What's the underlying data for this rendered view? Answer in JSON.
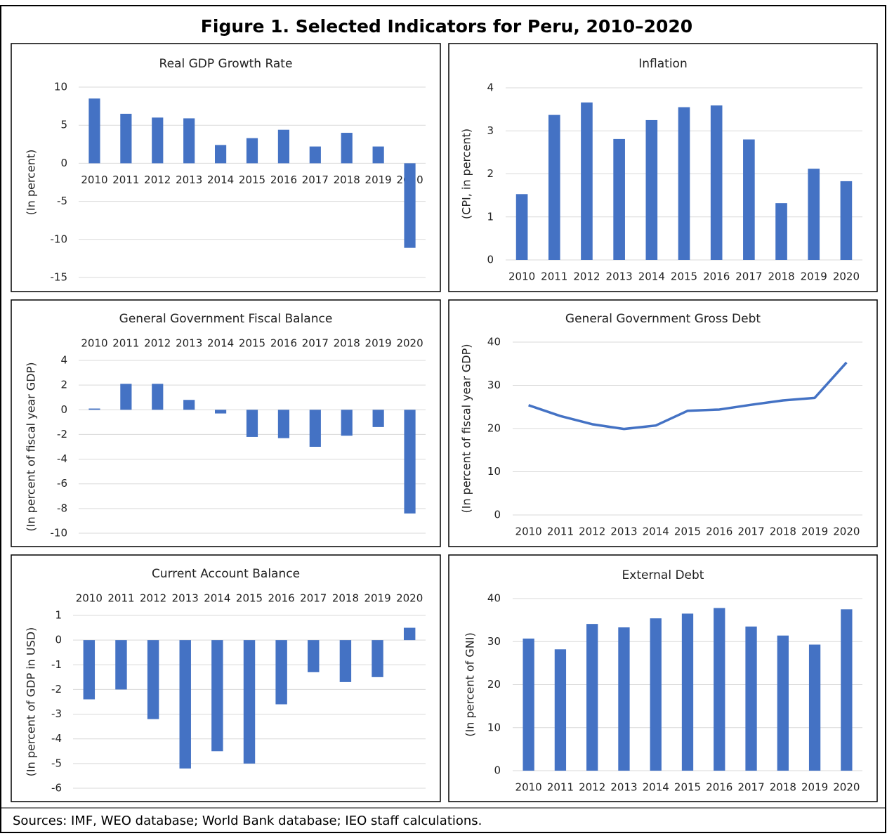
{
  "title": "Figure 1. Selected Indicators for Peru, 2010–2020",
  "source": "Sources: IMF, WEO database;  World Bank database;  IEO staff calculations.",
  "chart_data": [
    {
      "type": "bar",
      "title": "Real GDP Growth Rate",
      "y_label": "(In percent)",
      "color": "#4472c4",
      "grid": true,
      "categories": [
        "2010",
        "2011",
        "2012",
        "2013",
        "2014",
        "2015",
        "2016",
        "2017",
        "2018",
        "2019",
        "2020"
      ],
      "values": [
        8.5,
        6.5,
        6.0,
        5.9,
        2.4,
        3.3,
        4.4,
        2.2,
        4.0,
        2.2,
        -11.1
      ],
      "ylim": [
        -15,
        10
      ],
      "yticks": [
        -15,
        -10,
        -5,
        0,
        5,
        10
      ]
    },
    {
      "type": "bar",
      "title": "Inflation",
      "y_label": "(CPI, in percent)",
      "color": "#4472c4",
      "grid": true,
      "categories": [
        "2010",
        "2011",
        "2012",
        "2013",
        "2014",
        "2015",
        "2016",
        "2017",
        "2018",
        "2019",
        "2020"
      ],
      "values": [
        1.53,
        3.37,
        3.66,
        2.81,
        3.25,
        3.55,
        3.59,
        2.8,
        1.32,
        2.12,
        1.83
      ],
      "ylim": [
        0,
        4
      ],
      "yticks": [
        0,
        1,
        2,
        3,
        4
      ]
    },
    {
      "type": "bar",
      "title": "General Government Fiscal Balance",
      "y_label": "(In percent of fiscal year GDP)",
      "color": "#4472c4",
      "grid": true,
      "categories": [
        "2010",
        "2011",
        "2012",
        "2013",
        "2014",
        "2015",
        "2016",
        "2017",
        "2018",
        "2019",
        "2020"
      ],
      "values": [
        0.1,
        2.1,
        2.1,
        0.8,
        -0.3,
        -2.2,
        -2.3,
        -3.0,
        -2.1,
        -1.4,
        -8.4
      ],
      "ylim": [
        -10,
        4
      ],
      "yticks": [
        -10,
        -8,
        -6,
        -4,
        -2,
        0,
        2,
        4
      ]
    },
    {
      "type": "line",
      "title": "General Government Gross Debt",
      "y_label": "(In percent of fiscal year GDP)",
      "color": "#4472c4",
      "grid": true,
      "categories": [
        "2010",
        "2011",
        "2012",
        "2013",
        "2014",
        "2015",
        "2016",
        "2017",
        "2018",
        "2019",
        "2020"
      ],
      "values": [
        25.4,
        22.9,
        21.0,
        19.9,
        20.7,
        24.1,
        24.4,
        25.5,
        26.5,
        27.1,
        35.3
      ],
      "ylim": [
        0,
        40
      ],
      "yticks": [
        0,
        10,
        20,
        30,
        40
      ]
    },
    {
      "type": "bar",
      "title": "Current Account  Balance",
      "y_label": "(In percent of GDP in USD)",
      "color": "#4472c4",
      "grid": true,
      "categories": [
        "2010",
        "2011",
        "2012",
        "2013",
        "2014",
        "2015",
        "2016",
        "2017",
        "2018",
        "2019",
        "2020"
      ],
      "values": [
        -2.4,
        -2.0,
        -3.2,
        -5.2,
        -4.5,
        -5.0,
        -2.6,
        -1.3,
        -1.7,
        -1.5,
        0.5
      ],
      "ylim": [
        -6,
        1
      ],
      "yticks": [
        -6,
        -5,
        -4,
        -3,
        -2,
        -1,
        0,
        1
      ]
    },
    {
      "type": "bar",
      "title": "External Debt",
      "y_label": "(In percent of GNI)",
      "color": "#4472c4",
      "grid": true,
      "categories": [
        "2010",
        "2011",
        "2012",
        "2013",
        "2014",
        "2015",
        "2016",
        "2017",
        "2018",
        "2019",
        "2020"
      ],
      "values": [
        30.7,
        28.2,
        34.1,
        33.3,
        35.4,
        36.5,
        37.8,
        33.5,
        31.4,
        29.3,
        37.5
      ],
      "ylim": [
        0,
        40
      ],
      "yticks": [
        0,
        10,
        20,
        30,
        40
      ]
    }
  ]
}
